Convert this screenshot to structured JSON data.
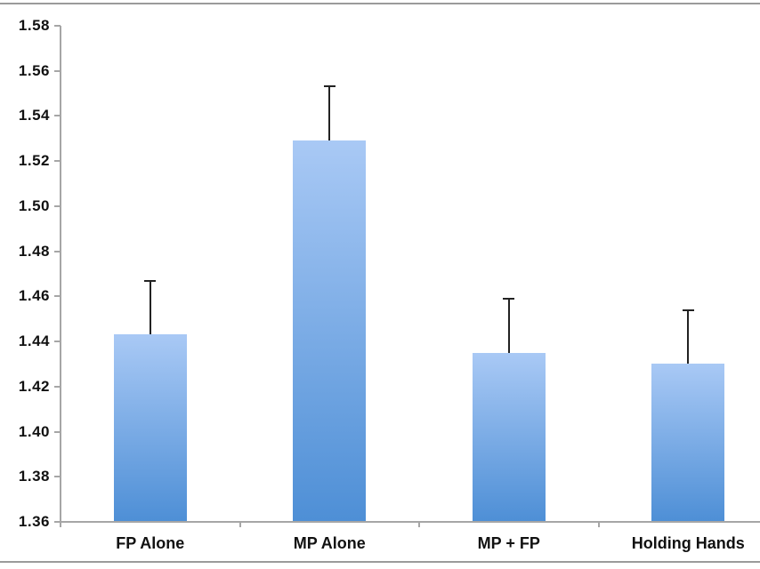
{
  "chart_data": {
    "type": "bar",
    "categories": [
      "FP Alone",
      "MP Alone",
      "MP + FP",
      "Holding Hands"
    ],
    "values": [
      1.443,
      1.529,
      1.435,
      1.43
    ],
    "errors_plus": [
      0.024,
      0.024,
      0.024,
      0.024
    ],
    "ylim": [
      1.36,
      1.58
    ],
    "ytick_step": 0.02,
    "ytick_labels": [
      "1.36",
      "1.38",
      "1.40",
      "1.42",
      "1.44",
      "1.46",
      "1.48",
      "1.50",
      "1.52",
      "1.54",
      "1.56",
      "1.58"
    ],
    "grid": false,
    "legend": "none",
    "bar_gradient_top": "#a9c9f5",
    "bar_gradient_bottom": "#4e8fd6",
    "axis_color": "#a6a6a6",
    "error_bar_color": "#222222",
    "label_color": "#111111",
    "frame_line_color": "#9b9b9b"
  }
}
